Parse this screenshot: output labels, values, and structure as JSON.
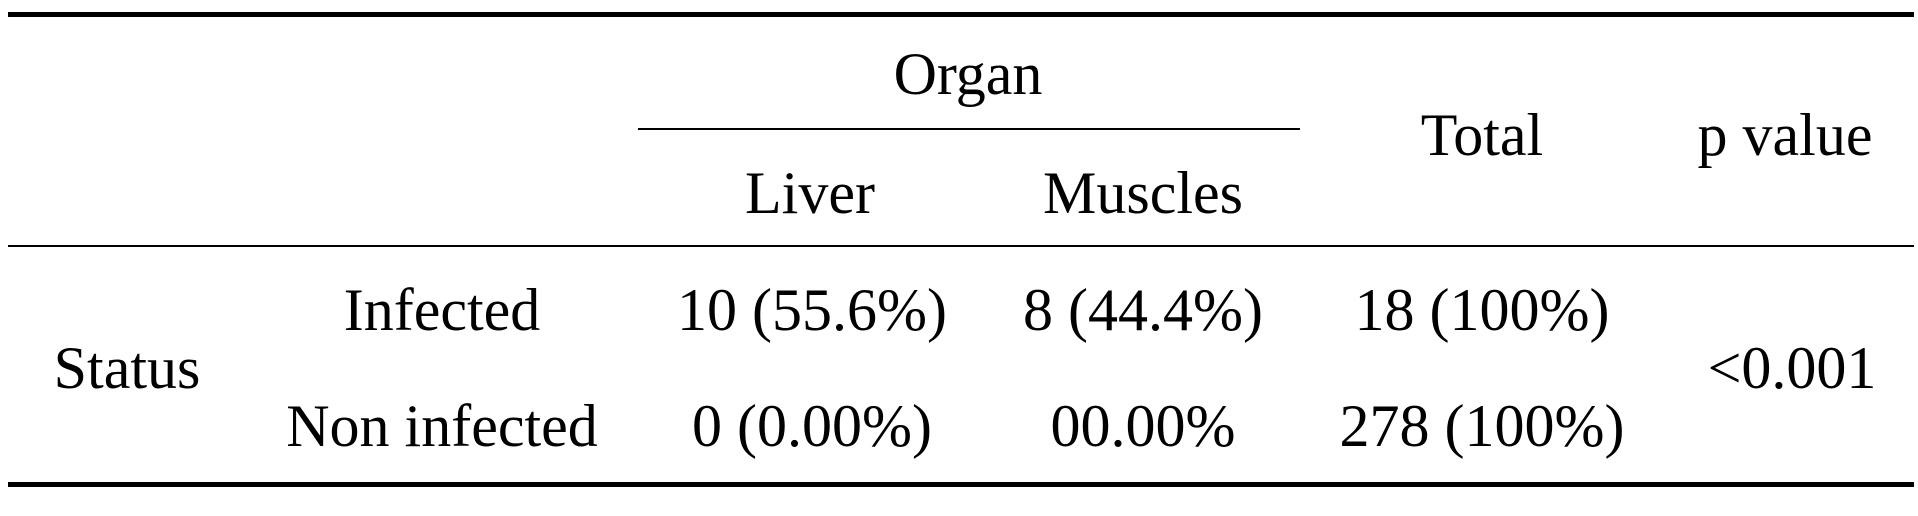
{
  "table": {
    "header": {
      "organ_label": "Organ",
      "liver_label": "Liver",
      "muscles_label": "Muscles",
      "total_label": "Total",
      "p_value_label": "p value"
    },
    "row_group_label": "Status",
    "rows": [
      {
        "label": "Infected",
        "liver": "10 (55.6%)",
        "muscles": "8 (44.4%)",
        "total": "18 (100%)"
      },
      {
        "label": "Non infected",
        "liver": "0 (0.00%)",
        "muscles": "00.00%",
        "total": "278 (100%)"
      }
    ],
    "p_value": "<0.001"
  }
}
